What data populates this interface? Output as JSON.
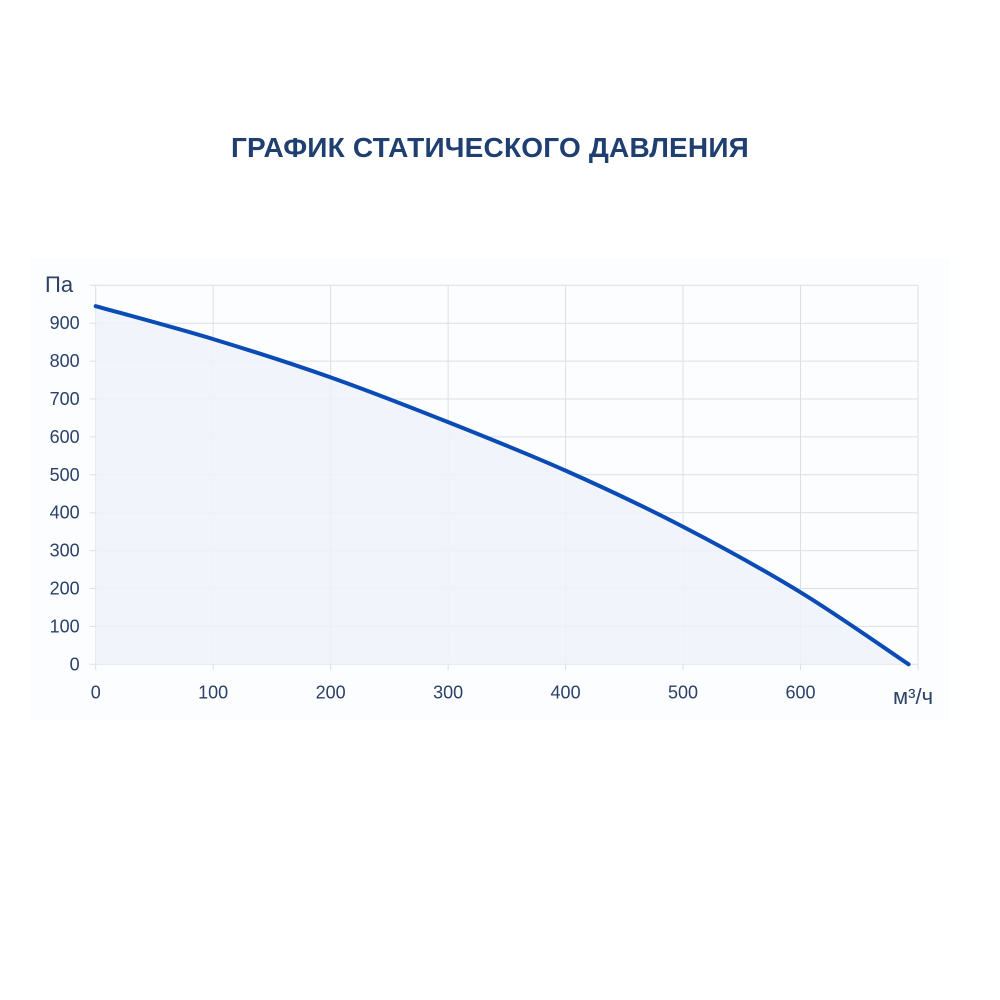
{
  "chart_data": {
    "type": "area",
    "title": "ГРАФИК СТАТИЧЕСКОГО ДАВЛЕНИЯ",
    "xlabel": "м³/ч",
    "ylabel": "Па",
    "xlim": [
      0,
      700
    ],
    "ylim": [
      0,
      1000
    ],
    "x_ticks": [
      0,
      100,
      200,
      300,
      400,
      500,
      600
    ],
    "y_ticks": [
      0,
      100,
      200,
      300,
      400,
      500,
      600,
      700,
      800,
      900
    ],
    "grid": true,
    "colors": {
      "line": "#0a4bb5",
      "fill": "#eef3fa",
      "grid": "#dcdfe6",
      "text": "#2b4168",
      "title": "#1e3f6f"
    },
    "series": [
      {
        "x": [
          0,
          100,
          200,
          300,
          400,
          500,
          600,
          692
        ],
        "y": [
          945,
          858,
          757,
          639,
          511,
          363,
          190,
          0
        ]
      }
    ]
  }
}
